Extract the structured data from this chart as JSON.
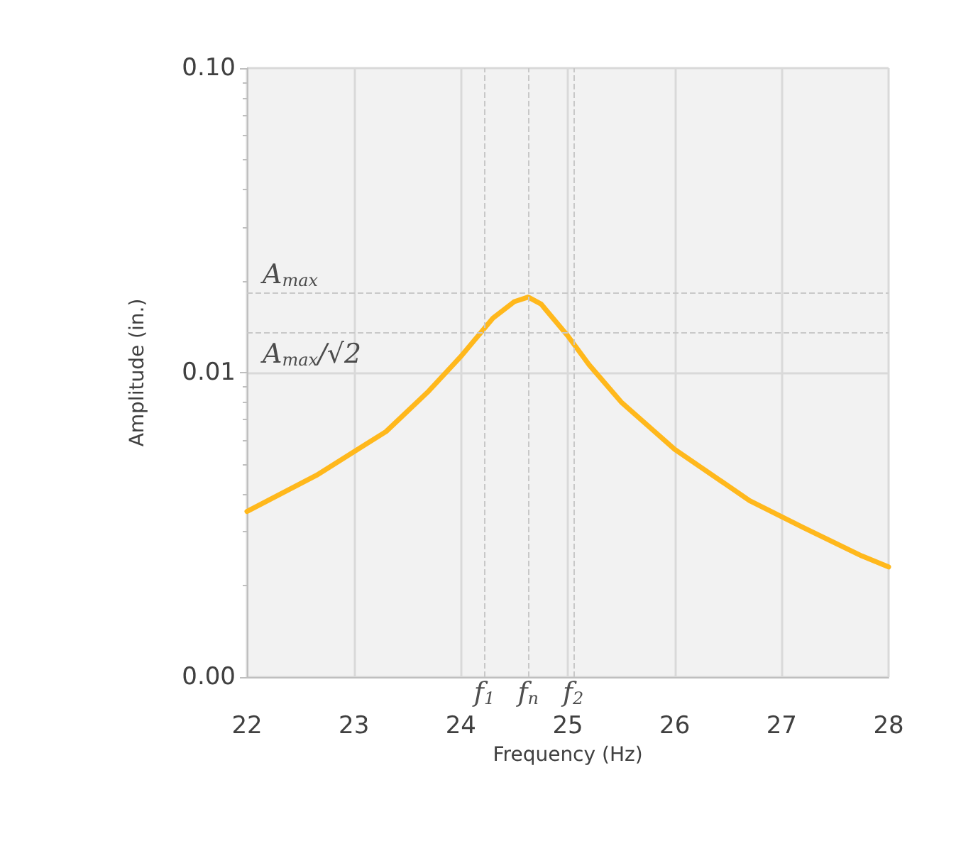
{
  "chart_data": {
    "type": "line",
    "xlabel": "Frequency (Hz)",
    "ylabel": "Amplitude (in.)",
    "x": [
      22,
      22.65,
      23.3,
      23.7,
      24.0,
      24.3,
      24.5,
      24.63,
      24.75,
      25.0,
      25.2,
      25.5,
      26.0,
      26.7,
      27.2,
      27.75,
      28
    ],
    "series": [
      {
        "color": "#ffb81c",
        "values": [
          0.0035,
          0.0046,
          0.0064,
          0.0087,
          0.0113,
          0.0151,
          0.0171,
          0.0177,
          0.0168,
          0.0132,
          0.0106,
          0.008,
          0.0056,
          0.0038,
          0.0031,
          0.0025,
          0.0023
        ]
      }
    ],
    "xlim": [
      22,
      28
    ],
    "xticks": [
      22,
      23,
      24,
      25,
      26,
      27,
      28
    ],
    "ylim": [
      0.001,
      0.1
    ],
    "yticks": [
      {
        "value": 0.001,
        "label": "0.00"
      },
      {
        "value": 0.01,
        "label": "0.01"
      },
      {
        "value": 0.1,
        "label": "0.10"
      }
    ],
    "log": "y",
    "grid": true,
    "marker": "none",
    "line_style": "solid",
    "ref_lines": [
      {
        "axis": "y",
        "value": 0.0182,
        "label": "A$_{max}$",
        "color": "#c8c8c8",
        "line_style": "dashed"
      },
      {
        "axis": "y",
        "value": 0.0135,
        "label": "A$_{max}$/√2",
        "color": "#c8c8c8",
        "line_style": "dashed"
      },
      {
        "axis": "x",
        "value": 24.22,
        "label": "f$_{1}$",
        "color": "#c8c8c8",
        "line_style": "dashed"
      },
      {
        "axis": "x",
        "value": 24.63,
        "label": "f$_{n}$",
        "color": "#c8c8c8",
        "line_style": "dashed"
      },
      {
        "axis": "x",
        "value": 25.05,
        "label": "f$_{2}$",
        "color": "#c8c8c8",
        "line_style": "dashed"
      }
    ]
  }
}
